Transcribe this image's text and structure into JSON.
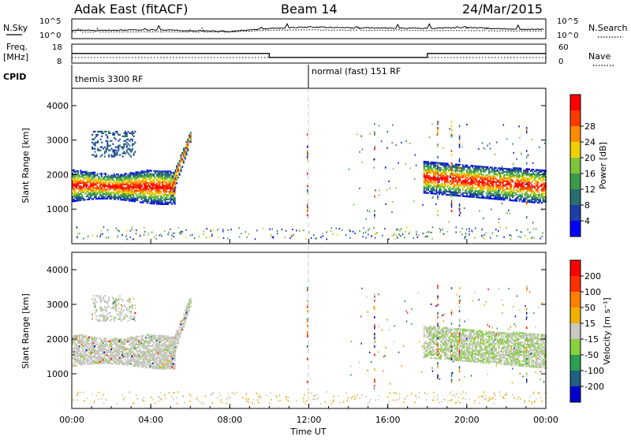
{
  "header": {
    "radar": "Adak East (fitACF)",
    "beam": "Beam 14",
    "date": "24/Mar/2015"
  },
  "chart_data": [
    {
      "type": "line",
      "name_label_left": "N.Sky",
      "name_label_right": "N.Search",
      "yticks_left": [
        "10^5",
        "10^0"
      ],
      "yticks_right": [
        "10^5",
        "10^0"
      ],
      "x": [
        0,
        2,
        4,
        6,
        8,
        10,
        12,
        14,
        16,
        18,
        20,
        22,
        24
      ],
      "nsky": [
        2.0,
        2.1,
        2.2,
        2.0,
        1.8,
        2.6,
        3.0,
        2.8,
        2.7,
        2.6,
        2.9,
        2.4,
        2.3
      ],
      "nsearch": [
        1.6,
        1.6,
        1.7,
        1.6,
        1.6,
        2.1,
        2.2,
        2.1,
        2.1,
        2.0,
        2.0,
        1.9,
        1.9
      ]
    },
    {
      "type": "line",
      "label_left_1": "Freq.",
      "label_left_2": "[MHz]",
      "label_right": "Nave",
      "yticks_left": [
        "18",
        "8"
      ],
      "yticks_right": [
        "60",
        "0"
      ],
      "freq_segments": [
        {
          "start": 0,
          "end": 10,
          "value": 13.1
        },
        {
          "start": 10,
          "end": 18,
          "value": 10.8
        },
        {
          "start": 18,
          "end": 24,
          "value": 13.1
        }
      ]
    },
    {
      "type": "table",
      "label": "CPID",
      "segments": [
        {
          "start": 0,
          "text": "themis 3300 RF"
        },
        {
          "start": 12,
          "text": "normal (fast) 151 RF"
        }
      ]
    },
    {
      "type": "heatmap",
      "param": "power",
      "ylabel": "Slant Range [km]",
      "ylim": [
        0,
        4500
      ],
      "yticks": [
        "1000",
        "2000",
        "3000",
        "4000"
      ],
      "colorbar_label": "Power [dB]",
      "colorbar_ticks": [
        "4",
        "8",
        "12",
        "16",
        "20",
        "24",
        "28"
      ],
      "colors": [
        "#0000ff",
        "#1c3ea8",
        "#2a6e6e",
        "#3a9a4a",
        "#7ec43c",
        "#f0d000",
        "#ff8c00",
        "#ff3a00",
        "#ff0000"
      ]
    },
    {
      "type": "heatmap",
      "param": "velocity",
      "ylabel": "Slant Range [km]",
      "ylim": [
        0,
        4500
      ],
      "yticks": [
        "1000",
        "2000",
        "3000",
        "4000"
      ],
      "colorbar_label": "Velocity [m s⁻¹]",
      "colorbar_ticks": [
        "200",
        "100",
        "50",
        "15",
        "-15",
        "-50",
        "-100",
        "-200"
      ],
      "colors": [
        "#0000cc",
        "#206080",
        "#2aa050",
        "#88d040",
        "#c8c8c0",
        "#f0b000",
        "#ff8000",
        "#ff3000",
        "#ff0000"
      ]
    }
  ],
  "xaxis": {
    "label": "Time UT",
    "ticks": [
      "00:00",
      "04:00",
      "08:00",
      "12:00",
      "16:00",
      "20:00",
      "00:00"
    ]
  }
}
